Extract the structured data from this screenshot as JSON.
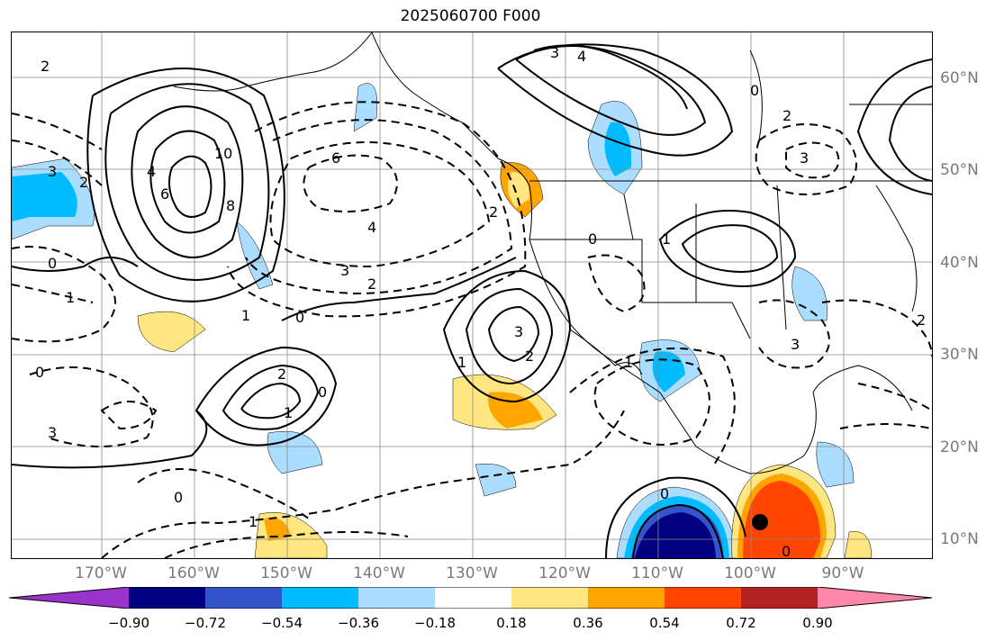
{
  "title": "2025060700 F000",
  "lat_labels": [
    "60°N",
    "50°N",
    "40°N",
    "30°N",
    "20°N",
    "10°N"
  ],
  "lon_labels": [
    "170°W",
    "160°W",
    "150°W",
    "140°W",
    "130°W",
    "120°W",
    "110°W",
    "100°W",
    "90°W"
  ],
  "colorbar": {
    "ticks": [
      "−0.90",
      "−0.72",
      "−0.54",
      "−0.36",
      "−0.18",
      "0.18",
      "0.36",
      "0.54",
      "0.72",
      "0.90"
    ],
    "colors": [
      "#9933cc",
      "#000080",
      "#3355cc",
      "#00bbff",
      "#aaddff",
      "#ffffff",
      "#ffe680",
      "#ffa500",
      "#ff4500",
      "#b22222",
      "#ff88aa"
    ]
  },
  "contour_labels": [
    {
      "text": "2"
    },
    {
      "text": "10"
    },
    {
      "text": "8"
    },
    {
      "text": "6"
    },
    {
      "text": "4"
    },
    {
      "text": "3"
    },
    {
      "text": "2"
    },
    {
      "text": "0"
    },
    {
      "text": "6"
    },
    {
      "text": "4"
    },
    {
      "text": "3"
    },
    {
      "text": "2"
    },
    {
      "text": "1"
    },
    {
      "text": "0"
    },
    {
      "text": "2"
    },
    {
      "text": "1"
    },
    {
      "text": "0"
    },
    {
      "text": "3"
    },
    {
      "text": "2"
    },
    {
      "text": "1"
    },
    {
      "text": "0"
    },
    {
      "text": "3"
    },
    {
      "text": "4"
    },
    {
      "text": "2"
    },
    {
      "text": "3"
    },
    {
      "text": "2"
    },
    {
      "text": "0"
    },
    {
      "text": "1"
    },
    {
      "text": "3"
    },
    {
      "text": "0"
    },
    {
      "text": "1"
    },
    {
      "text": "0"
    },
    {
      "text": "2"
    },
    {
      "text": "1"
    },
    {
      "text": "3"
    },
    {
      "text": "0"
    },
    {
      "text": "0"
    },
    {
      "text": "1"
    }
  ]
}
